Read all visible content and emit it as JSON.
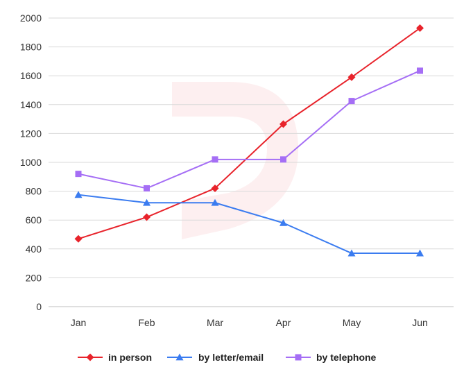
{
  "chart_data": {
    "type": "line",
    "categories": [
      "Jan",
      "Feb",
      "Mar",
      "Apr",
      "May",
      "Jun"
    ],
    "ylim": [
      0,
      2000
    ],
    "yticks": [
      0,
      200,
      400,
      600,
      800,
      1000,
      1200,
      1400,
      1600,
      1800,
      2000
    ],
    "grid": true,
    "legend_position": "bottom",
    "series": [
      {
        "name": "in person",
        "color": "#e8232b",
        "marker": "diamond",
        "values": [
          470,
          620,
          820,
          1265,
          1590,
          1930
        ]
      },
      {
        "name": "by letter/email",
        "color": "#3b7cf0",
        "marker": "triangle",
        "values": [
          775,
          720,
          720,
          580,
          370,
          370
        ]
      },
      {
        "name": "by telephone",
        "color": "#a56ef5",
        "marker": "square",
        "values": [
          920,
          820,
          1020,
          1020,
          1425,
          1635
        ]
      }
    ]
  }
}
